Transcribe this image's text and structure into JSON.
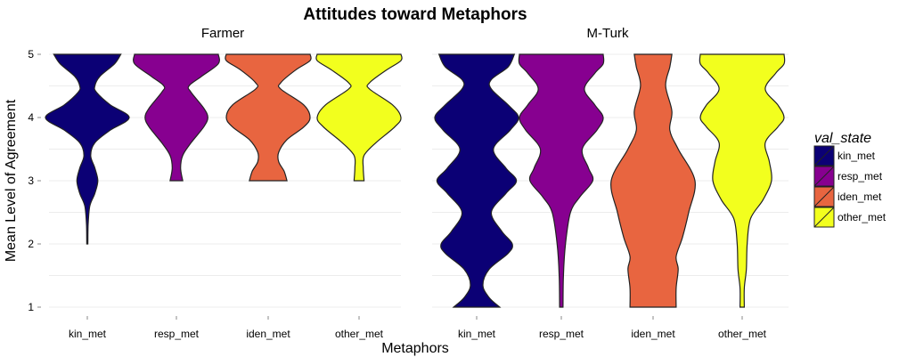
{
  "chart_data": {
    "type": "violin",
    "title": "Attitudes toward Metaphors",
    "xlabel": "Metaphors",
    "ylabel": "Mean Level of Agreement",
    "ylim": [
      1,
      5
    ],
    "yticks": [
      "1",
      "2",
      "3",
      "4",
      "5"
    ],
    "grid": true,
    "legend": {
      "title": "val_state",
      "position": "right",
      "entries": [
        {
          "name": "kin_met",
          "color": "#0b0075"
        },
        {
          "name": "resp_met",
          "color": "#870090"
        },
        {
          "name": "iden_met",
          "color": "#e86540"
        },
        {
          "name": "other_met",
          "color": "#f2ff1e"
        }
      ]
    },
    "categories": [
      "kin_met",
      "resp_met",
      "iden_met",
      "other_met"
    ],
    "panels": [
      {
        "label": "Farmer",
        "violins": [
          {
            "category": "kin_met",
            "range": [
              2,
              5
            ],
            "density": [
              [
                2.0,
                0.005
              ],
              [
                2.3,
                0.02
              ],
              [
                2.6,
                0.06
              ],
              [
                2.8,
                0.18
              ],
              [
                3.0,
                0.25
              ],
              [
                3.2,
                0.18
              ],
              [
                3.4,
                0.08
              ],
              [
                3.6,
                0.18
              ],
              [
                3.8,
                0.55
              ],
              [
                4.0,
                1.0
              ],
              [
                4.2,
                0.55
              ],
              [
                4.4,
                0.22
              ],
              [
                4.5,
                0.18
              ],
              [
                4.65,
                0.3
              ],
              [
                4.85,
                0.65
              ],
              [
                5.0,
                0.8
              ]
            ]
          },
          {
            "category": "resp_met",
            "range": [
              3,
              5
            ],
            "density": [
              [
                3.0,
                0.15
              ],
              [
                3.2,
                0.1
              ],
              [
                3.4,
                0.15
              ],
              [
                3.6,
                0.35
              ],
              [
                3.85,
                0.65
              ],
              [
                4.0,
                0.75
              ],
              [
                4.15,
                0.65
              ],
              [
                4.4,
                0.35
              ],
              [
                4.5,
                0.3
              ],
              [
                4.65,
                0.6
              ],
              [
                4.85,
                1.0
              ],
              [
                5.0,
                1.0
              ]
            ]
          },
          {
            "category": "iden_met",
            "range": [
              3,
              5
            ],
            "density": [
              [
                3.0,
                0.45
              ],
              [
                3.15,
                0.38
              ],
              [
                3.3,
                0.25
              ],
              [
                3.45,
                0.25
              ],
              [
                3.65,
                0.45
              ],
              [
                3.85,
                0.85
              ],
              [
                4.0,
                1.0
              ],
              [
                4.2,
                0.85
              ],
              [
                4.45,
                0.3
              ],
              [
                4.55,
                0.3
              ],
              [
                4.75,
                0.65
              ],
              [
                4.9,
                1.0
              ],
              [
                5.0,
                1.0
              ]
            ]
          },
          {
            "category": "other_met",
            "range": [
              3,
              5
            ],
            "density": [
              [
                3.0,
                0.12
              ],
              [
                3.2,
                0.1
              ],
              [
                3.4,
                0.12
              ],
              [
                3.6,
                0.4
              ],
              [
                3.85,
                0.85
              ],
              [
                4.0,
                1.0
              ],
              [
                4.2,
                0.8
              ],
              [
                4.45,
                0.25
              ],
              [
                4.55,
                0.25
              ],
              [
                4.75,
                0.65
              ],
              [
                4.9,
                1.0
              ],
              [
                5.0,
                1.0
              ]
            ]
          }
        ]
      },
      {
        "label": "M-Turk",
        "violins": [
          {
            "category": "kin_met",
            "range": [
              1,
              5
            ],
            "density": [
              [
                1.0,
                0.55
              ],
              [
                1.15,
                0.3
              ],
              [
                1.35,
                0.15
              ],
              [
                1.6,
                0.3
              ],
              [
                1.85,
                0.75
              ],
              [
                2.0,
                0.85
              ],
              [
                2.2,
                0.6
              ],
              [
                2.5,
                0.35
              ],
              [
                2.8,
                0.7
              ],
              [
                3.0,
                0.95
              ],
              [
                3.2,
                0.7
              ],
              [
                3.5,
                0.4
              ],
              [
                3.8,
                0.8
              ],
              [
                4.0,
                1.0
              ],
              [
                4.2,
                0.75
              ],
              [
                4.45,
                0.35
              ],
              [
                4.6,
                0.35
              ],
              [
                4.8,
                0.75
              ],
              [
                5.0,
                0.9
              ]
            ]
          },
          {
            "category": "resp_met",
            "range": [
              1,
              5
            ],
            "density": [
              [
                1.0,
                0.04
              ],
              [
                1.5,
                0.05
              ],
              [
                2.0,
                0.1
              ],
              [
                2.5,
                0.22
              ],
              [
                2.75,
                0.45
              ],
              [
                3.0,
                0.75
              ],
              [
                3.2,
                0.65
              ],
              [
                3.5,
                0.5
              ],
              [
                3.8,
                0.85
              ],
              [
                4.0,
                1.0
              ],
              [
                4.2,
                0.8
              ],
              [
                4.45,
                0.55
              ],
              [
                4.7,
                0.8
              ],
              [
                4.85,
                1.0
              ],
              [
                5.0,
                1.0
              ]
            ]
          },
          {
            "category": "iden_met",
            "range": [
              1,
              5
            ],
            "density": [
              [
                1.0,
                0.55
              ],
              [
                1.3,
                0.55
              ],
              [
                1.6,
                0.6
              ],
              [
                1.8,
                0.55
              ],
              [
                2.1,
                0.7
              ],
              [
                2.5,
                0.85
              ],
              [
                3.0,
                1.0
              ],
              [
                3.5,
                0.6
              ],
              [
                3.8,
                0.4
              ],
              [
                4.1,
                0.45
              ],
              [
                4.5,
                0.3
              ],
              [
                4.8,
                0.4
              ],
              [
                5.0,
                0.45
              ]
            ]
          },
          {
            "category": "other_met",
            "range": [
              1,
              5
            ],
            "density": [
              [
                1.0,
                0.05
              ],
              [
                1.3,
                0.05
              ],
              [
                1.6,
                0.1
              ],
              [
                2.0,
                0.12
              ],
              [
                2.4,
                0.2
              ],
              [
                2.7,
                0.5
              ],
              [
                3.0,
                0.7
              ],
              [
                3.3,
                0.65
              ],
              [
                3.6,
                0.55
              ],
              [
                3.85,
                0.85
              ],
              [
                4.0,
                1.0
              ],
              [
                4.2,
                0.85
              ],
              [
                4.45,
                0.55
              ],
              [
                4.7,
                0.8
              ],
              [
                4.85,
                1.0
              ],
              [
                5.0,
                1.0
              ]
            ]
          }
        ]
      }
    ]
  }
}
